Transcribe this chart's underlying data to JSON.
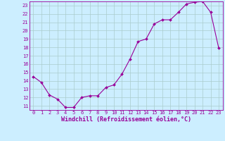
{
  "x": [
    0,
    1,
    2,
    3,
    4,
    5,
    6,
    7,
    8,
    9,
    10,
    11,
    12,
    13,
    14,
    15,
    16,
    17,
    18,
    19,
    20,
    21,
    22,
    23
  ],
  "y": [
    14.5,
    13.8,
    12.3,
    11.8,
    10.8,
    10.8,
    12.0,
    12.2,
    12.2,
    13.2,
    13.5,
    14.8,
    16.6,
    18.7,
    19.0,
    20.8,
    21.3,
    21.3,
    22.2,
    23.2,
    23.4,
    23.5,
    22.2,
    17.9
  ],
  "line_color": "#990099",
  "marker": "D",
  "marker_size": 2,
  "bg_color": "#cceeff",
  "grid_color": "#aacccc",
  "xlabel": "Windchill (Refroidissement éolien,°C)",
  "xlim": [
    -0.5,
    23.5
  ],
  "ylim": [
    10.5,
    23.5
  ],
  "yticks": [
    11,
    12,
    13,
    14,
    15,
    16,
    17,
    18,
    19,
    20,
    21,
    22,
    23
  ],
  "xticks": [
    0,
    1,
    2,
    3,
    4,
    5,
    6,
    7,
    8,
    9,
    10,
    11,
    12,
    13,
    14,
    15,
    16,
    17,
    18,
    19,
    20,
    21,
    22,
    23
  ],
  "tick_fontsize": 5.0,
  "xlabel_fontsize": 6.0
}
